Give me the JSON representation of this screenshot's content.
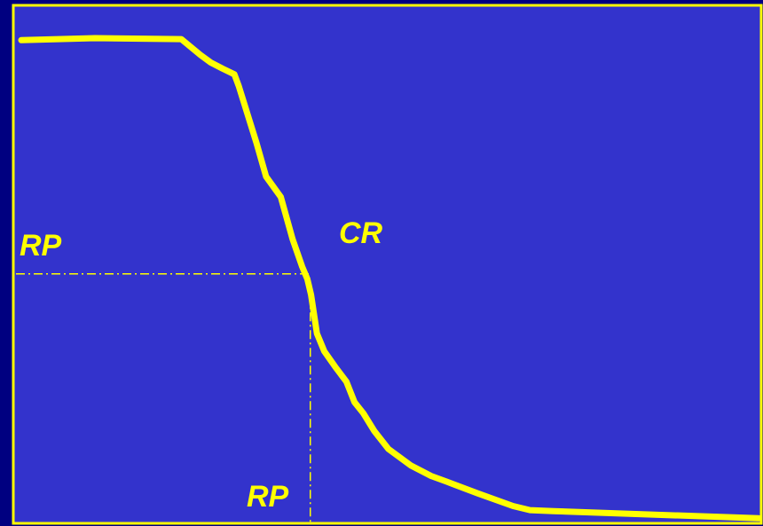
{
  "colors": {
    "background": "#3333cc",
    "frame_outer": "#000080",
    "frame": "#ffff00",
    "curve": "#ffff00",
    "guide": "#ffff00"
  },
  "labels": {
    "rp_left": "RP",
    "cr": "CR",
    "rp_bottom": "RP"
  },
  "chart_data": {
    "type": "line",
    "title": "",
    "xlabel": "",
    "ylabel": "",
    "grid": false,
    "legend": "none",
    "xlim": [
      0,
      100
    ],
    "ylim": [
      0,
      100
    ],
    "series": [
      {
        "x": [
          0,
          10,
          21.7,
          24.3,
          25.7,
          27.3,
          28.9,
          29.5,
          30.4,
          31.9,
          33.2,
          35.2,
          36.8,
          38.1,
          38.8,
          39.3,
          40.1,
          41.1,
          42.6,
          44.1,
          45.2,
          46.4,
          47.9,
          49.8,
          52.8,
          55.6,
          57.7,
          61.9,
          66.7,
          69.0,
          72.2,
          100
        ],
        "y": [
          94.2,
          94.6,
          94.4,
          91.3,
          89.8,
          88.6,
          87.5,
          85.2,
          81.0,
          74.0,
          67.4,
          63.4,
          55.1,
          49.7,
          47.3,
          44.2,
          36.6,
          33.1,
          30.0,
          27.1,
          23.1,
          20.9,
          17.4,
          13.9,
          10.7,
          8.6,
          7.5,
          5.2,
          2.7,
          1.9,
          1.7,
          0.3
        ]
      }
    ],
    "annotations": [
      {
        "text": "RP",
        "type": "horizontal-guide",
        "y": 48.3
      },
      {
        "text": "RP",
        "type": "vertical-guide",
        "x": 39.2
      },
      {
        "text": "CR",
        "type": "region-label"
      }
    ]
  }
}
